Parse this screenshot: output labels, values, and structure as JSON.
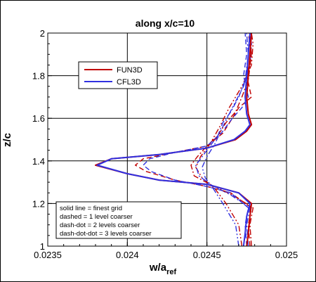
{
  "chart_data": {
    "type": "line",
    "title": "along x/c=10",
    "xlabel": "w/a",
    "xlabel_sub": "ref",
    "ylabel": "z/c",
    "xlim": [
      0.0235,
      0.025
    ],
    "ylim": [
      1.0,
      2.0
    ],
    "x_ticks": [
      "0.0235",
      "0.024",
      "0.0245",
      "0.025"
    ],
    "y_ticks": [
      "1",
      "1.2",
      "1.4",
      "1.6",
      "1.8",
      "2"
    ],
    "grid": true,
    "legend": {
      "position": "upper-left",
      "entries": [
        {
          "label": "FUN3D",
          "color": "#c00000"
        },
        {
          "label": "CFL3D",
          "color": "#3030e0"
        }
      ]
    },
    "annotation": [
      "solid line = finest grid",
      "dashed = 1 level coarser",
      "dash-dot = 2 levels coarser",
      "dash-dot-dot = 3 levels coarser"
    ],
    "series": [
      {
        "name": "FUN3D",
        "style": "solid",
        "color": "#c00000",
        "points": [
          [
            0.02475,
            1.0
          ],
          [
            0.02476,
            1.06
          ],
          [
            0.02477,
            1.14
          ],
          [
            0.02478,
            1.2
          ],
          [
            0.0247,
            1.25
          ],
          [
            0.0245,
            1.29
          ],
          [
            0.0242,
            1.31
          ],
          [
            0.024,
            1.34
          ],
          [
            0.0238,
            1.38
          ],
          [
            0.0239,
            1.41
          ],
          [
            0.0242,
            1.43
          ],
          [
            0.0245,
            1.46
          ],
          [
            0.02468,
            1.5
          ],
          [
            0.02475,
            1.54
          ],
          [
            0.02478,
            1.57
          ],
          [
            0.02476,
            1.62
          ],
          [
            0.02475,
            1.7
          ],
          [
            0.02476,
            1.8
          ],
          [
            0.02477,
            1.9
          ],
          [
            0.02478,
            2.0
          ]
        ]
      },
      {
        "name": "CFL3D",
        "style": "solid",
        "color": "#3030e0",
        "points": [
          [
            0.02473,
            1.0
          ],
          [
            0.02474,
            1.06
          ],
          [
            0.02475,
            1.14
          ],
          [
            0.02477,
            1.2
          ],
          [
            0.0247,
            1.25
          ],
          [
            0.0245,
            1.29
          ],
          [
            0.0242,
            1.31
          ],
          [
            0.024,
            1.34
          ],
          [
            0.02381,
            1.38
          ],
          [
            0.0239,
            1.41
          ],
          [
            0.0242,
            1.43
          ],
          [
            0.0245,
            1.46
          ],
          [
            0.02467,
            1.5
          ],
          [
            0.02474,
            1.54
          ],
          [
            0.02477,
            1.57
          ],
          [
            0.02475,
            1.62
          ],
          [
            0.02474,
            1.7
          ],
          [
            0.02475,
            1.8
          ],
          [
            0.02476,
            1.9
          ],
          [
            0.02477,
            2.0
          ]
        ]
      },
      {
        "name": "FUN3D",
        "style": "dashed",
        "color": "#c00000",
        "points": [
          [
            0.02477,
            1.0
          ],
          [
            0.02476,
            1.1
          ],
          [
            0.02478,
            1.18
          ],
          [
            0.02465,
            1.25
          ],
          [
            0.0245,
            1.28
          ],
          [
            0.0243,
            1.31
          ],
          [
            0.02412,
            1.35
          ],
          [
            0.02405,
            1.38
          ],
          [
            0.0241,
            1.41
          ],
          [
            0.0243,
            1.44
          ],
          [
            0.0245,
            1.47
          ],
          [
            0.0246,
            1.53
          ],
          [
            0.02466,
            1.6
          ],
          [
            0.0247,
            1.65
          ],
          [
            0.02478,
            1.7
          ],
          [
            0.02475,
            1.8
          ],
          [
            0.02478,
            1.9
          ],
          [
            0.02476,
            2.0
          ]
        ]
      },
      {
        "name": "CFL3D",
        "style": "dashed",
        "color": "#3030e0",
        "points": [
          [
            0.02475,
            1.0
          ],
          [
            0.02474,
            1.1
          ],
          [
            0.02476,
            1.18
          ],
          [
            0.02465,
            1.25
          ],
          [
            0.0245,
            1.28
          ],
          [
            0.0243,
            1.31
          ],
          [
            0.02415,
            1.35
          ],
          [
            0.0241,
            1.38
          ],
          [
            0.02414,
            1.41
          ],
          [
            0.0243,
            1.44
          ],
          [
            0.0245,
            1.47
          ],
          [
            0.02459,
            1.53
          ],
          [
            0.02466,
            1.6
          ],
          [
            0.02472,
            1.65
          ],
          [
            0.02476,
            1.7
          ],
          [
            0.02473,
            1.8
          ],
          [
            0.02475,
            1.9
          ],
          [
            0.02474,
            2.0
          ]
        ]
      },
      {
        "name": "FUN3D",
        "style": "dashdot",
        "color": "#c00000",
        "points": [
          [
            0.02478,
            1.0
          ],
          [
            0.02477,
            1.1
          ],
          [
            0.02479,
            1.18
          ],
          [
            0.02466,
            1.24
          ],
          [
            0.02452,
            1.29
          ],
          [
            0.02442,
            1.33
          ],
          [
            0.0244,
            1.38
          ],
          [
            0.02444,
            1.42
          ],
          [
            0.0245,
            1.47
          ],
          [
            0.02457,
            1.52
          ],
          [
            0.02462,
            1.58
          ],
          [
            0.02468,
            1.63
          ],
          [
            0.02472,
            1.7
          ],
          [
            0.02476,
            1.78
          ],
          [
            0.02478,
            1.9
          ],
          [
            0.02477,
            2.0
          ]
        ]
      },
      {
        "name": "CFL3D",
        "style": "dashdot",
        "color": "#3030e0",
        "points": [
          [
            0.02476,
            1.0
          ],
          [
            0.02475,
            1.1
          ],
          [
            0.02477,
            1.18
          ],
          [
            0.02465,
            1.24
          ],
          [
            0.02452,
            1.29
          ],
          [
            0.02445,
            1.33
          ],
          [
            0.02443,
            1.38
          ],
          [
            0.02447,
            1.42
          ],
          [
            0.02452,
            1.47
          ],
          [
            0.02457,
            1.52
          ],
          [
            0.0246,
            1.58
          ],
          [
            0.02465,
            1.63
          ],
          [
            0.0247,
            1.7
          ],
          [
            0.02474,
            1.78
          ],
          [
            0.02476,
            1.9
          ],
          [
            0.02475,
            2.0
          ]
        ]
      },
      {
        "name": "FUN3D",
        "style": "dashdotdot",
        "color": "#c00000",
        "points": [
          [
            0.02472,
            1.0
          ],
          [
            0.0247,
            1.1
          ],
          [
            0.02462,
            1.2
          ],
          [
            0.02455,
            1.27
          ],
          [
            0.02447,
            1.32
          ],
          [
            0.02443,
            1.37
          ],
          [
            0.02446,
            1.42
          ],
          [
            0.02452,
            1.48
          ],
          [
            0.02458,
            1.56
          ],
          [
            0.02464,
            1.65
          ],
          [
            0.02472,
            1.75
          ],
          [
            0.02478,
            1.85
          ],
          [
            0.02479,
            1.95
          ],
          [
            0.02478,
            2.0
          ]
        ]
      },
      {
        "name": "CFL3D",
        "style": "dashdotdot",
        "color": "#3030e0",
        "points": [
          [
            0.0247,
            1.0
          ],
          [
            0.02468,
            1.1
          ],
          [
            0.0246,
            1.2
          ],
          [
            0.02454,
            1.27
          ],
          [
            0.02449,
            1.32
          ],
          [
            0.02447,
            1.37
          ],
          [
            0.0245,
            1.42
          ],
          [
            0.02455,
            1.48
          ],
          [
            0.0246,
            1.56
          ],
          [
            0.02466,
            1.65
          ],
          [
            0.02473,
            1.75
          ],
          [
            0.02477,
            1.85
          ],
          [
            0.02478,
            1.95
          ],
          [
            0.02477,
            2.0
          ]
        ]
      }
    ]
  }
}
